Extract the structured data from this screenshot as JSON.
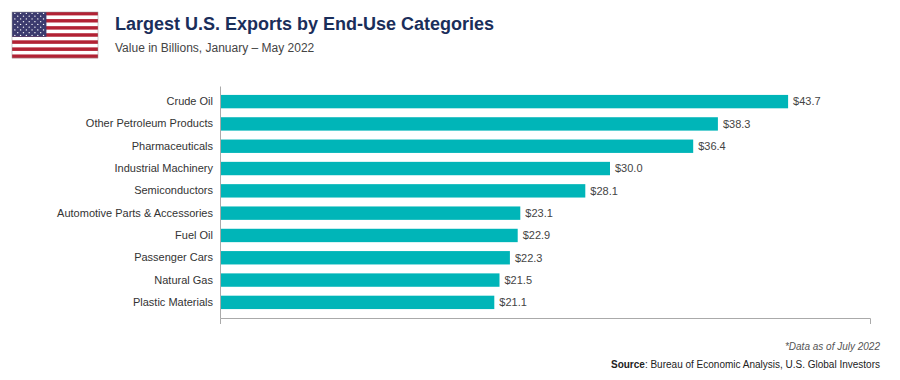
{
  "chart_data": {
    "type": "bar",
    "orientation": "horizontal",
    "title": "Largest U.S. Exports by End-Use Categories",
    "subtitle": "Value in Billions, January – May 2022",
    "categories": [
      "Plastic Materials",
      "Natural Gas",
      "Passenger Cars",
      "Fuel Oil",
      "Automotive Parts & Accessories",
      "Semiconductors",
      "Industrial Machinery",
      "Pharmaceuticals",
      "Other Petroleum Products",
      "Crude Oil"
    ],
    "values": [
      21.1,
      21.5,
      22.3,
      22.9,
      23.1,
      28.1,
      30.0,
      36.4,
      38.3,
      43.7
    ],
    "value_labels": [
      "$21.1",
      "$21.5",
      "$22.3",
      "$22.9",
      "$23.1",
      "$28.1",
      "$30.0",
      "$36.4",
      "$38.3",
      "$43.7"
    ],
    "data_labels": true,
    "color": "#00B5B8",
    "xlim": [
      0,
      50
    ],
    "xticks": [],
    "tick_labels": "y",
    "grid": false,
    "annotations": [
      "*Data as of July 2022",
      "Source",
      ": Bureau of Economic Analysis, U.S. Global Investors"
    ]
  }
}
